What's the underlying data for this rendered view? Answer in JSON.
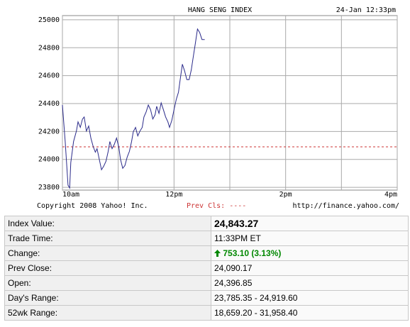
{
  "chart_data": {
    "type": "line",
    "title": "HANG SENG INDEX",
    "timestamp": "24-Jan 12:33pm",
    "copyright": "Copyright 2008 Yahoo! Inc.",
    "source": "http://finance.yahoo.com/",
    "legend_label": "Prev Cls: ----",
    "prev_close": 24090.17,
    "prev_close_color": "#cc3333",
    "xlim": [
      10,
      16
    ],
    "ylim": [
      23780,
      25030
    ],
    "xticks": [
      {
        "value": 10,
        "label": "10am"
      },
      {
        "value": 12,
        "label": "12pm"
      },
      {
        "value": 14,
        "label": "2pm"
      },
      {
        "value": 16,
        "label": "4pm"
      }
    ],
    "minor_xticks": [
      11,
      13,
      15
    ],
    "yticks": [
      23800,
      24000,
      24200,
      24400,
      24600,
      24800,
      25000
    ],
    "grid": true,
    "series": [
      {
        "color": "#2a2a8a",
        "x": [
          10.0,
          10.05,
          10.1,
          10.13,
          10.15,
          10.2,
          10.25,
          10.28,
          10.32,
          10.36,
          10.39,
          10.43,
          10.47,
          10.51,
          10.55,
          10.59,
          10.62,
          10.66,
          10.7,
          10.74,
          10.78,
          10.82,
          10.85,
          10.89,
          10.93,
          10.97,
          11.01,
          11.04,
          11.08,
          11.12,
          11.16,
          11.2,
          11.24,
          11.27,
          11.31,
          11.35,
          11.39,
          11.43,
          11.46,
          11.5,
          11.54,
          11.58,
          11.62,
          11.66,
          11.69,
          11.73,
          11.77,
          11.81,
          11.85,
          11.89,
          11.92,
          11.96,
          12.0,
          12.04,
          12.08,
          12.11,
          12.15,
          12.19,
          12.23,
          12.27,
          12.31,
          12.34,
          12.38,
          12.42,
          12.46,
          12.5,
          12.55
        ],
        "values": [
          24390,
          24128,
          23815,
          23795,
          23977,
          24128,
          24203,
          24269,
          24229,
          24289,
          24304,
          24203,
          24239,
          24153,
          24093,
          24052,
          24077,
          24002,
          23926,
          23951,
          23987,
          24057,
          24128,
          24077,
          24108,
          24153,
          24088,
          24002,
          23936,
          23956,
          24017,
          24057,
          24128,
          24198,
          24229,
          24168,
          24203,
          24229,
          24304,
          24340,
          24390,
          24355,
          24289,
          24319,
          24380,
          24330,
          24405,
          24355,
          24304,
          24269,
          24229,
          24279,
          24355,
          24430,
          24481,
          24571,
          24682,
          24632,
          24571,
          24571,
          24642,
          24723,
          24824,
          24934,
          24909,
          24859,
          24859
        ]
      }
    ]
  },
  "table": {
    "rows": [
      [
        "Index Value:",
        "24,843.27"
      ],
      [
        "Trade Time:",
        "11:33PM ET"
      ],
      [
        "Change:",
        "753.10 (3.13%)"
      ],
      [
        "Prev Close:",
        "24,090.17"
      ],
      [
        "Open:",
        "24,396.85"
      ],
      [
        "Day's Range:",
        "23,785.35 - 24,919.60"
      ],
      [
        "52wk Range:",
        "18,659.20 - 31,958.40"
      ]
    ]
  }
}
